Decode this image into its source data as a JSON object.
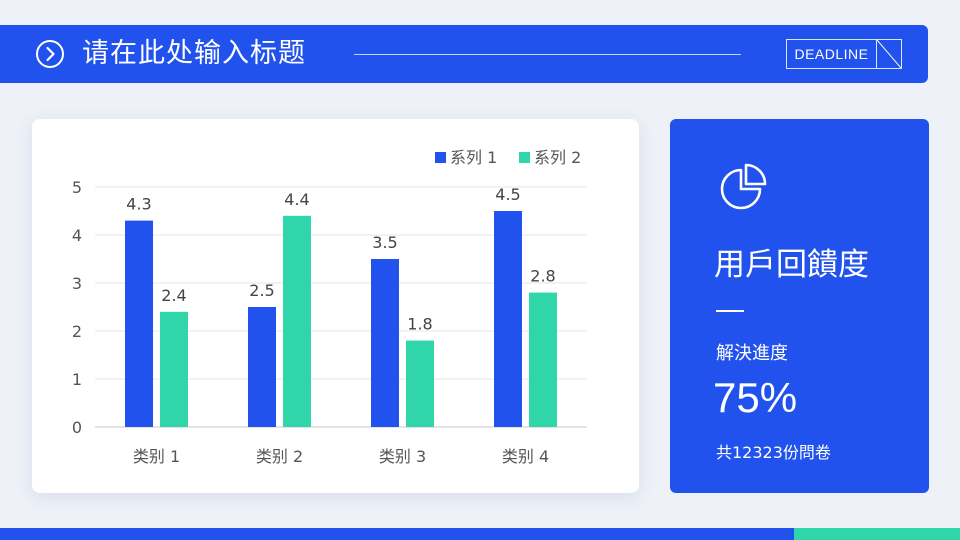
{
  "header": {
    "title": "请在此处输入标题",
    "badge": "DEADLINE",
    "icon": "chevron-right-circle-icon"
  },
  "colors": {
    "primary": "#2152ee",
    "accent": "#31d5aa",
    "background": "#eef1f7"
  },
  "chart_data": {
    "type": "bar",
    "categories": [
      "类别 1",
      "类别 2",
      "类别 3",
      "类别 4"
    ],
    "series": [
      {
        "name": "系列 1",
        "color": "#2152ee",
        "values": [
          4.3,
          2.5,
          3.5,
          4.5
        ]
      },
      {
        "name": "系列 2",
        "color": "#31d5aa",
        "values": [
          2.4,
          4.4,
          1.8,
          2.8
        ]
      }
    ],
    "ylim": [
      0,
      5
    ],
    "yticks": [
      "0",
      "1",
      "2",
      "3",
      "4",
      "5"
    ],
    "data_labels": true,
    "grid": true,
    "legend_position": "top-right",
    "title": "",
    "xlabel": "",
    "ylabel": ""
  },
  "side_panel": {
    "icon": "pie-chart-icon",
    "title": "用戶回饋度",
    "progress_label": "解決進度",
    "progress_value": "75%",
    "total_text": "共12323份問卷"
  }
}
